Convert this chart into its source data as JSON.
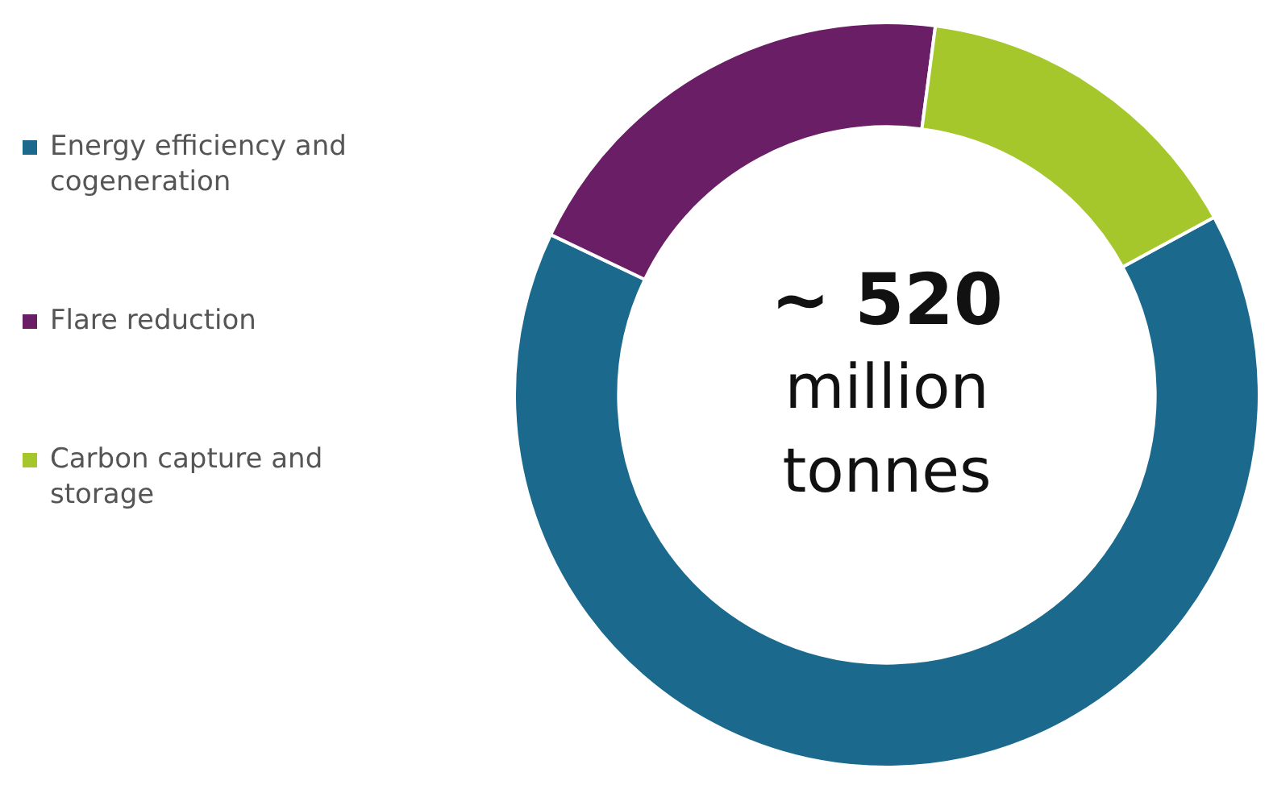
{
  "chart_data": {
    "type": "donut",
    "title": "~ 520",
    "subtitle": "million tonnes",
    "categories": [
      "Energy efficiency and cogeneration",
      "Flare reduction",
      "Carbon capture and storage"
    ],
    "values": [
      65,
      20,
      15
    ],
    "colors": [
      "#1b6a8e",
      "#6a1e66",
      "#a5c72b"
    ],
    "legend": "left"
  }
}
